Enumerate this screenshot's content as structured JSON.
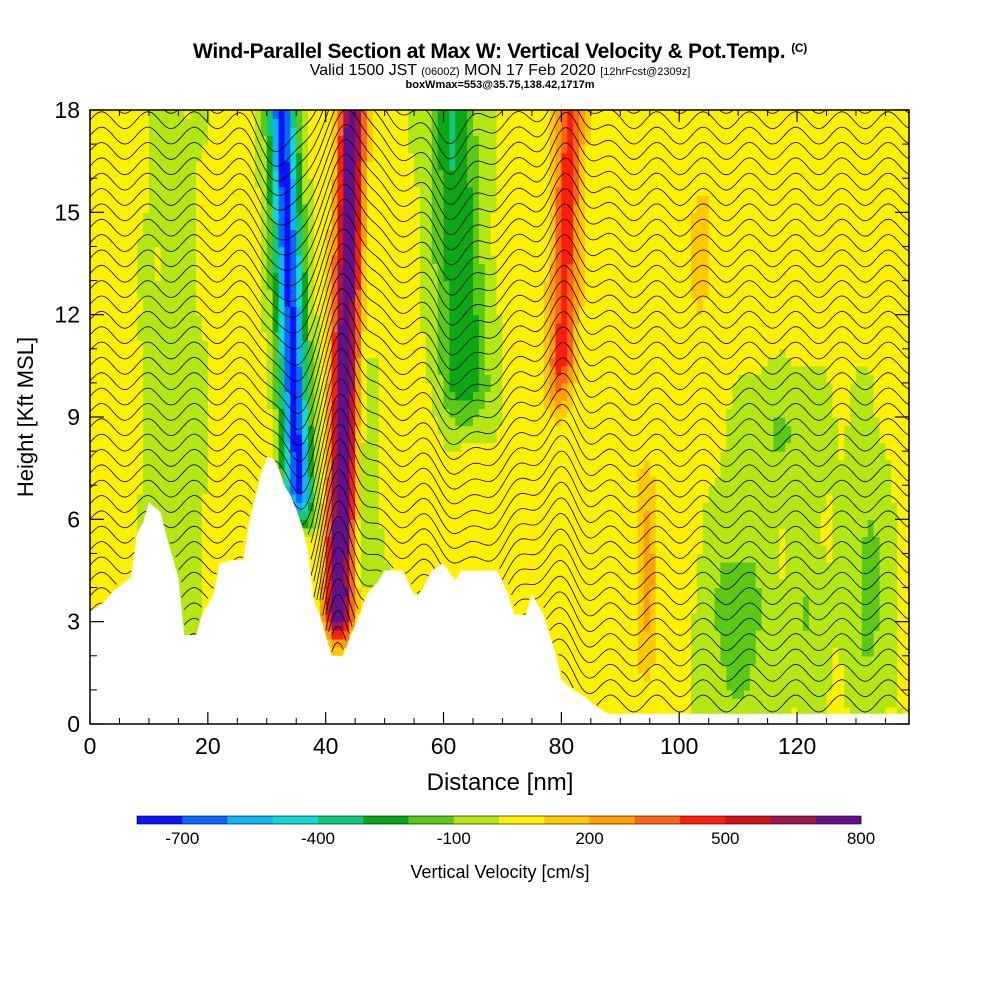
{
  "header": {
    "title": "Wind-Parallel Section at Max W: Vertical Velocity & Pot.Temp.",
    "title_mark": "(C)",
    "valid_prefix": "Valid 1500 JST",
    "valid_utc": "(0600Z)",
    "valid_date": "MON 17 Feb 2020",
    "forecast": "[12hrFcst@2309z]",
    "box_info": "boxWmax=553@35.75,138.42,1717m"
  },
  "chart_data": {
    "type": "heatmap",
    "xlabel": "Distance [nm]",
    "ylabel": "Height [Kft MSL]",
    "xlim": [
      0,
      139
    ],
    "ylim": [
      0,
      18
    ],
    "x_ticks": [
      0,
      20,
      40,
      60,
      80,
      100,
      120
    ],
    "y_ticks": [
      0,
      3,
      6,
      9,
      12,
      15,
      18
    ],
    "colorbar": {
      "label": "Vertical Velocity [cm/s]",
      "tick_labels": [
        "-700",
        "-400",
        "-100",
        "200",
        "500",
        "800"
      ],
      "tick_values": [
        -700,
        -400,
        -100,
        200,
        500,
        800
      ],
      "levels": [
        -800,
        -700,
        -600,
        -500,
        -400,
        -300,
        -200,
        -100,
        0,
        100,
        200,
        300,
        400,
        500,
        600,
        700,
        800
      ],
      "colors": [
        "#0a14ff",
        "#0a66ff",
        "#10b4f5",
        "#10d8d0",
        "#10c878",
        "#0aa814",
        "#5ac814",
        "#b4e614",
        "#fff000",
        "#ffc800",
        "#ffa000",
        "#ff6414",
        "#ff1e0a",
        "#d2141e",
        "#a01450",
        "#640f8c"
      ]
    },
    "background_level": "#b4e614",
    "features": [
      {
        "name": "downdraft",
        "x": 36,
        "z_range": [
          5.8,
          18
        ],
        "peak": -700
      },
      {
        "name": "updraft",
        "x": 43,
        "z_range": [
          2.5,
          18
        ],
        "peak": 800
      },
      {
        "name": "downdraft",
        "x": 63,
        "z_range": [
          9,
          18
        ],
        "peak": -300
      },
      {
        "name": "updraft",
        "x": 82,
        "z_range": [
          9,
          18
        ],
        "peak": 400
      },
      {
        "name": "updraft",
        "x": 93,
        "z_range": [
          1,
          7.5
        ],
        "peak": 200
      }
    ],
    "terrain": [
      [
        0,
        3.3
      ],
      [
        2,
        3.5
      ],
      [
        4,
        3.9
      ],
      [
        7,
        4.3
      ],
      [
        8,
        5.6
      ],
      [
        9,
        5.9
      ],
      [
        10,
        6.5
      ],
      [
        12,
        6.2
      ],
      [
        13,
        5.5
      ],
      [
        15,
        4.3
      ],
      [
        16,
        2.6
      ],
      [
        18,
        2.6
      ],
      [
        19,
        3.2
      ],
      [
        21,
        3.8
      ],
      [
        22,
        4.7
      ],
      [
        24,
        4.8
      ],
      [
        26,
        4.8
      ],
      [
        27,
        5.9
      ],
      [
        29,
        7.3
      ],
      [
        30,
        7.8
      ],
      [
        31,
        7.8
      ],
      [
        32,
        7.5
      ],
      [
        33,
        7.0
      ],
      [
        34,
        6.7
      ],
      [
        35,
        6.3
      ],
      [
        36,
        5.8
      ],
      [
        37,
        5.1
      ],
      [
        38,
        3.6
      ],
      [
        39,
        3.2
      ],
      [
        40,
        2.6
      ],
      [
        41,
        2.0
      ],
      [
        43,
        2.0
      ],
      [
        44,
        2.5
      ],
      [
        45,
        2.9
      ],
      [
        46,
        3.3
      ],
      [
        47,
        3.8
      ],
      [
        48,
        4.0
      ],
      [
        49,
        4.2
      ],
      [
        50,
        4.5
      ],
      [
        53,
        4.5
      ],
      [
        55,
        3.8
      ],
      [
        56,
        3.8
      ],
      [
        58,
        4.5
      ],
      [
        60,
        4.7
      ],
      [
        62,
        4.2
      ],
      [
        63,
        4.5
      ],
      [
        69,
        4.5
      ],
      [
        70,
        4.2
      ],
      [
        71,
        3.8
      ],
      [
        72,
        3.2
      ],
      [
        74,
        3.2
      ],
      [
        75,
        3.8
      ],
      [
        77,
        3.2
      ],
      [
        78,
        2.6
      ],
      [
        79,
        2.1
      ],
      [
        80,
        1.3
      ],
      [
        82,
        1.0
      ],
      [
        84,
        0.8
      ],
      [
        86,
        0.5
      ],
      [
        88,
        0.3
      ],
      [
        139,
        0.3
      ]
    ],
    "contour_labels": [
      "-700",
      "-400",
      "-100",
      "200",
      "500",
      "800"
    ]
  },
  "colors": {
    "background": "#ffffff",
    "text": "#000000",
    "contour": "#000000"
  }
}
